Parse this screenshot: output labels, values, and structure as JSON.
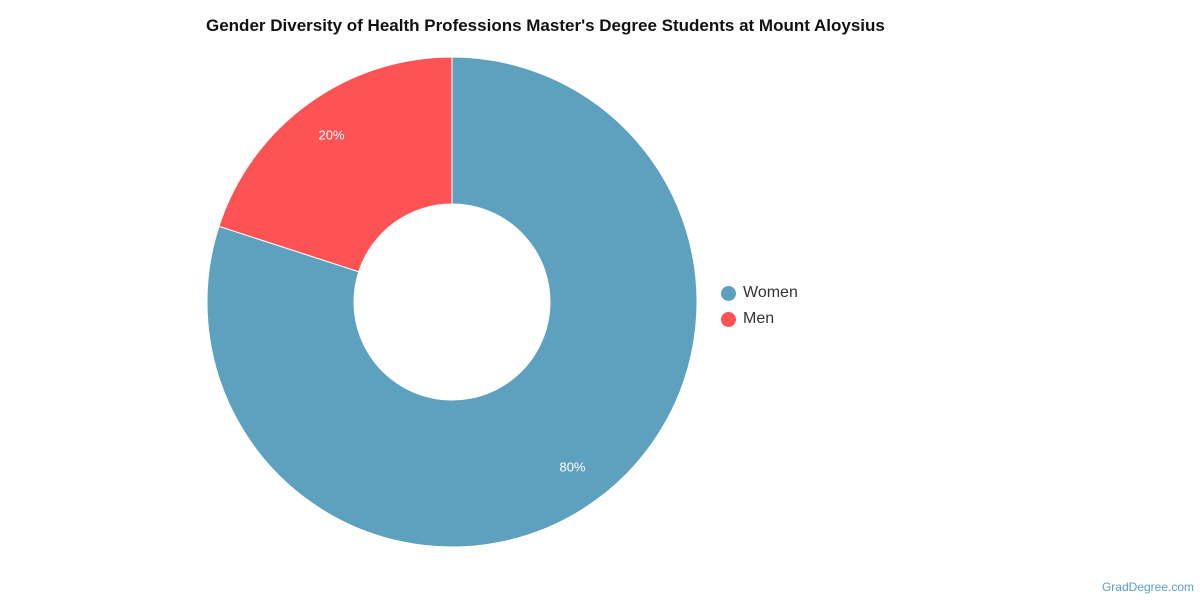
{
  "chart_data": {
    "type": "pie",
    "title": "Gender Diversity of Health Professions Master's Degree Students at Mount Aloysius",
    "categories": [
      "Women",
      "Men"
    ],
    "values": [
      80,
      20
    ],
    "value_labels": [
      "80%",
      "20%"
    ],
    "colors": [
      "#5ea1be",
      "#fd5355"
    ],
    "donut": true,
    "legend_position": "right"
  },
  "legend": {
    "items": [
      {
        "label": "Women",
        "color": "#5ea1be"
      },
      {
        "label": "Men",
        "color": "#fd5355"
      }
    ]
  },
  "footer": {
    "source": "GradDegree.com"
  }
}
